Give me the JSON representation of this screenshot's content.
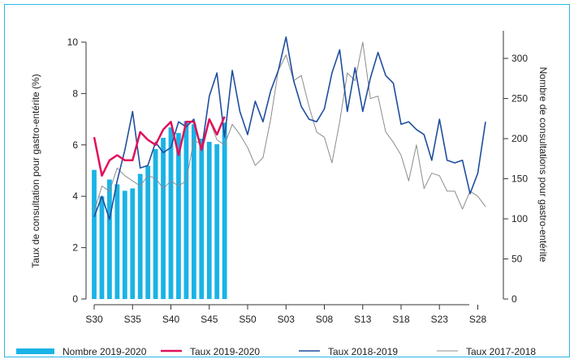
{
  "chart_data": {
    "type": "bar+line",
    "x_categories": [
      "S30",
      "S31",
      "S32",
      "S33",
      "S34",
      "S35",
      "S36",
      "S37",
      "S38",
      "S39",
      "S40",
      "S41",
      "S42",
      "S43",
      "S44",
      "S45",
      "S46",
      "S47",
      "S48",
      "S49",
      "S50",
      "S51",
      "S52",
      "S01",
      "S02",
      "S03",
      "S04",
      "S05",
      "S06",
      "S07",
      "S08",
      "S09",
      "S10",
      "S11",
      "S12",
      "S13",
      "S14",
      "S15",
      "S16",
      "S17",
      "S18",
      "S19",
      "S20",
      "S21",
      "S22",
      "S23",
      "S24",
      "S25",
      "S26",
      "S27",
      "S28",
      "S29"
    ],
    "x_tick_labels": [
      "S30",
      "S35",
      "S40",
      "S45",
      "S50",
      "S03",
      "S08",
      "S13",
      "S18",
      "S23",
      "S28"
    ],
    "ylabel_left": "Taux de consultation pour gastro-entérite (%)",
    "ylabel_right": "Nombre de consultations pour gastro-entérite",
    "ylim_left": [
      0,
      10.6
    ],
    "ylim_right": [
      0,
      335
    ],
    "yticks_left": [
      "0",
      "2",
      "4",
      "6",
      "8",
      "10"
    ],
    "yticks_right": [
      "0",
      "50",
      "100",
      "150",
      "200",
      "250",
      "300"
    ],
    "legend_position": "bottom",
    "series": [
      {
        "name": "Nombre 2019-2020",
        "type": "bar",
        "axis": "right",
        "color": "#1ab3e6",
        "values": [
          161,
          128,
          149,
          143,
          135,
          138,
          156,
          166,
          187,
          201,
          214,
          207,
          222,
          218,
          200,
          196,
          193,
          220
        ]
      },
      {
        "name": "Taux 2019-2020",
        "type": "line",
        "axis": "left",
        "color": "#e0105c",
        "values": [
          6.3,
          4.8,
          5.4,
          5.6,
          5.4,
          5.4,
          6.5,
          6.2,
          6.0,
          6.6,
          6.9,
          5.6,
          6.9,
          6.9,
          5.8,
          7.0,
          6.4,
          7.1
        ]
      },
      {
        "name": "Taux 2018-2019",
        "type": "line",
        "axis": "left",
        "color": "#1f4e9e",
        "values": [
          3.2,
          4.0,
          3.1,
          4.6,
          5.8,
          7.3,
          5.1,
          5.2,
          6.1,
          5.7,
          5.9,
          6.9,
          6.7,
          7.0,
          5.8,
          7.9,
          8.8,
          6.3,
          8.9,
          7.3,
          6.4,
          7.7,
          6.9,
          8.1,
          8.9,
          10.2,
          8.5,
          7.5,
          7.0,
          6.9,
          7.4,
          8.8,
          9.7,
          7.3,
          9.0,
          7.3,
          8.6,
          9.6,
          8.7,
          8.4,
          6.8,
          6.9,
          6.6,
          6.4,
          5.4,
          7.0,
          5.4,
          5.3,
          5.4,
          4.1,
          4.9,
          6.9
        ]
      },
      {
        "name": "Taux 2017-2018",
        "type": "line",
        "axis": "left",
        "color": "#8c8c8c",
        "values": [
          3.4,
          4.4,
          4.2,
          5.1,
          4.8,
          4.6,
          4.4,
          4.8,
          4.7,
          4.3,
          4.6,
          4.4,
          4.6,
          6.2,
          6.0,
          7.0,
          6.2,
          6.0,
          6.8,
          6.4,
          5.9,
          5.2,
          5.5,
          7.0,
          8.9,
          9.5,
          8.5,
          8.7,
          7.5,
          6.5,
          6.3,
          5.3,
          6.9,
          8.8,
          8.5,
          10.0,
          7.8,
          7.9,
          6.5,
          6.1,
          5.6,
          4.6,
          6.0,
          4.3,
          4.9,
          4.8,
          4.2,
          4.2,
          3.5,
          4.2,
          4.0,
          3.6
        ]
      }
    ]
  }
}
